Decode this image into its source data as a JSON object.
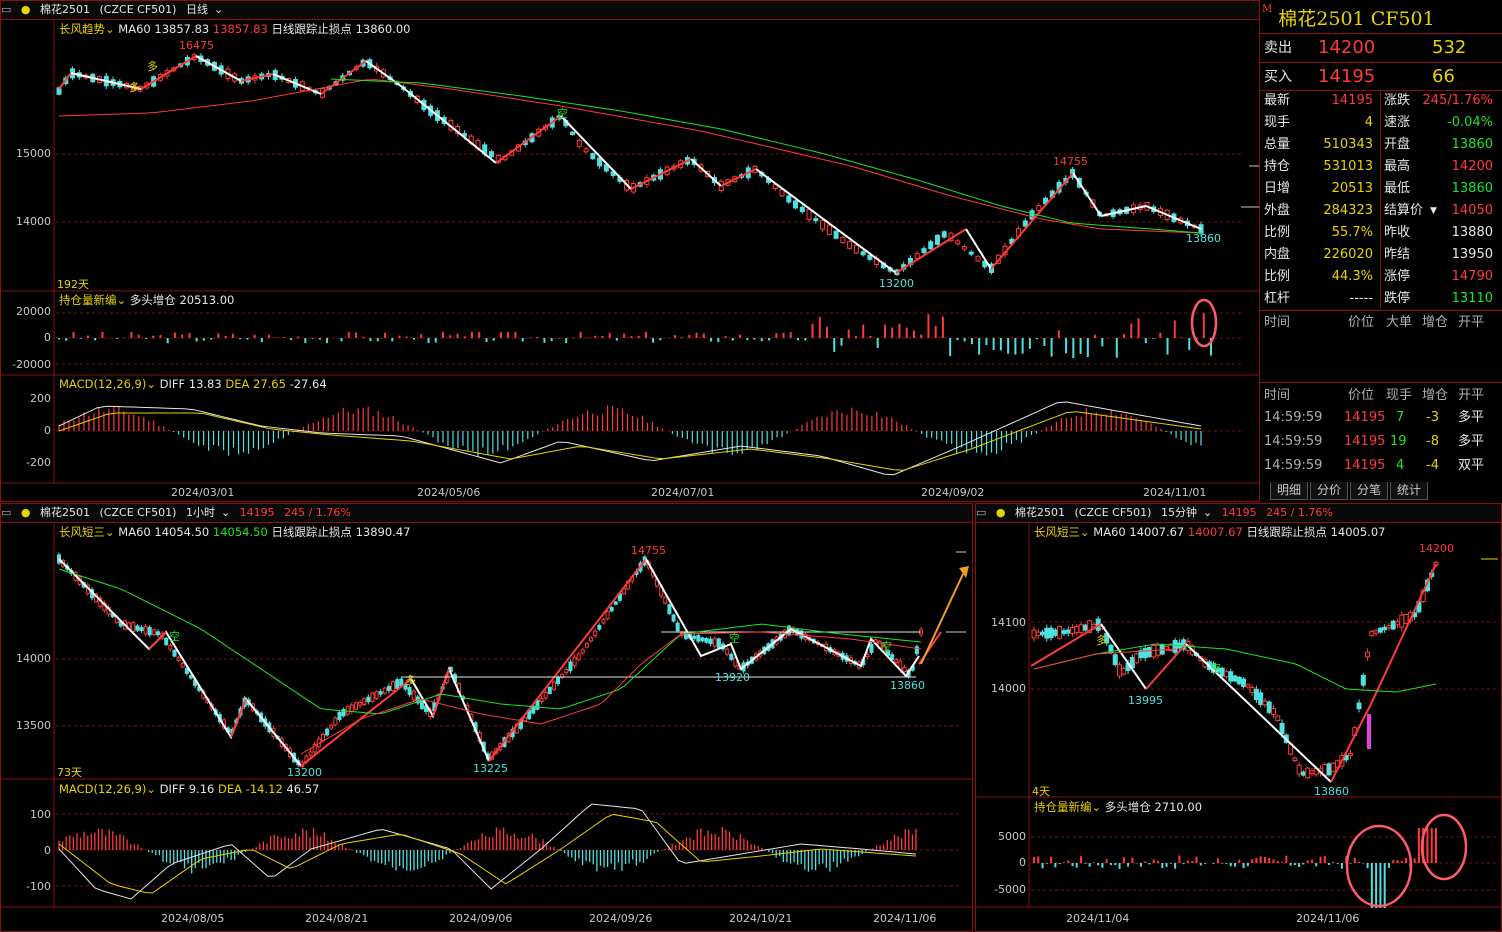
{
  "main": {
    "title": "棉花2501",
    "code": "(CZCE CF501)",
    "period": "日线",
    "indicator": "长风趋势",
    "ma60_label": "MA60 13857.83",
    "ma60_value": "13857.83",
    "stop_label": "日线跟踪止损点 13860.00",
    "days": "192天",
    "y_labels": [
      "15000",
      "14000"
    ],
    "annotations": {
      "high": "16475",
      "peak": "14755",
      "low": "13200",
      "last": "13860",
      "duo1": "多",
      "duo2": "多",
      "kong1": "空"
    },
    "x_labels": [
      "2024/03/01",
      "2024/05/06",
      "2024/07/01",
      "2024/09/02",
      "2024/11/01"
    ],
    "oi_panel": {
      "title": "持仓量新编",
      "sub": "多头增仓 20513.00",
      "y_labels": [
        "20000",
        "0",
        "-20000"
      ]
    },
    "macd_panel": {
      "title": "MACD(12,26,9)",
      "diff": "DIFF 13.83",
      "dea": "DEA 27.65",
      "macd": "-27.64",
      "y_labels": [
        "200",
        "0",
        "-200"
      ]
    }
  },
  "hourly": {
    "title": "棉花2501",
    "code": "(CZCE CF501)",
    "period": "1小时",
    "price": "14195",
    "change": "245 / 1.76%",
    "indicator": "长风短三",
    "ma60_label": "MA60 14054.50",
    "ma60_value": "14054.50",
    "stop_label": "日线跟踪止损点 13890.47",
    "days": "73天",
    "y_labels": [
      "14000",
      "13500"
    ],
    "annotations": {
      "peak": "14755",
      "l1": "13200",
      "l2": "13225",
      "l3": "13920",
      "l4": "13860",
      "duo": "多",
      "kong1": "空",
      "kong2": "空",
      "kong3": "空"
    },
    "x_labels": [
      "2024/08/05",
      "2024/08/21",
      "2024/09/06",
      "2024/09/26",
      "2024/10/21",
      "2024/11/06"
    ],
    "macd_panel": {
      "title": "MACD(12,26,9)",
      "diff": "DIFF 9.16",
      "dea": "DEA -14.12",
      "macd": "46.57",
      "y_labels": [
        "100",
        "0",
        "-100"
      ]
    }
  },
  "min15": {
    "title": "棉花2501",
    "code": "(CZCE CF501)",
    "period": "15分钟",
    "price": "14195",
    "change": "245 / 1.76%",
    "indicator": "长风短三",
    "ma60_label": "MA60 14007.67",
    "ma60_value": "14007.67",
    "stop_label": "日线跟踪止损点 14005.07",
    "days": "4天",
    "y_labels": [
      "14100",
      "14000"
    ],
    "annotations": {
      "high": "14200",
      "l1": "13995",
      "l2": "13860",
      "duo": "多",
      "kong": "空"
    },
    "x_labels": [
      "2024/11/04",
      "2024/11/06"
    ],
    "oi_panel": {
      "title": "持仓量新编",
      "sub": "多头增仓 2710.00",
      "y_labels": [
        "5000",
        "0",
        "-5000"
      ]
    }
  },
  "quote": {
    "title": "棉花2501",
    "code": "CF501",
    "sell_label": "卖出",
    "sell_price": "14200",
    "sell_vol": "532",
    "buy_label": "买入",
    "buy_price": "14195",
    "buy_vol": "66",
    "rows": [
      {
        "l1": "最新",
        "v1": "14195",
        "l2": "涨跌",
        "v2": "245/1.76%"
      },
      {
        "l1": "现手",
        "v1": "4",
        "l2": "速涨",
        "v2": "-0.04%"
      },
      {
        "l1": "总量",
        "v1": "510343",
        "l2": "开盘",
        "v2": "13860"
      },
      {
        "l1": "持仓",
        "v1": "531013",
        "l2": "最高",
        "v2": "14200"
      },
      {
        "l1": "日增",
        "v1": "20513",
        "l2": "最低",
        "v2": "13860"
      },
      {
        "l1": "外盘",
        "v1": "284323",
        "l2": "结算价",
        "v2": "14050"
      },
      {
        "l1": "比例",
        "v1": "55.7%",
        "l2": "昨收",
        "v2": "13880"
      },
      {
        "l1": "内盘",
        "v1": "226020",
        "l2": "昨结",
        "v2": "13950"
      },
      {
        "l1": "比例",
        "v1": "44.3%",
        "l2": "涨停",
        "v2": "14790"
      },
      {
        "l1": "杠杆",
        "v1": "-----",
        "l2": "跌停",
        "v2": "13110"
      }
    ],
    "big_header": [
      "时间",
      "价位",
      "大单",
      "增仓",
      "开平"
    ],
    "tick_header": [
      "时间",
      "价位",
      "现手",
      "增仓",
      "开平"
    ],
    "ticks": [
      {
        "time": "14:59:59",
        "price": "14195",
        "vol": "7",
        "oi": "-3",
        "type": "多平"
      },
      {
        "time": "14:59:59",
        "price": "14195",
        "vol": "19",
        "oi": "-8",
        "type": "多平"
      },
      {
        "time": "14:59:59",
        "price": "14195",
        "vol": "4",
        "oi": "-4",
        "type": "双平"
      }
    ],
    "tabs": [
      "明细",
      "分价",
      "分笔",
      "统计"
    ]
  }
}
